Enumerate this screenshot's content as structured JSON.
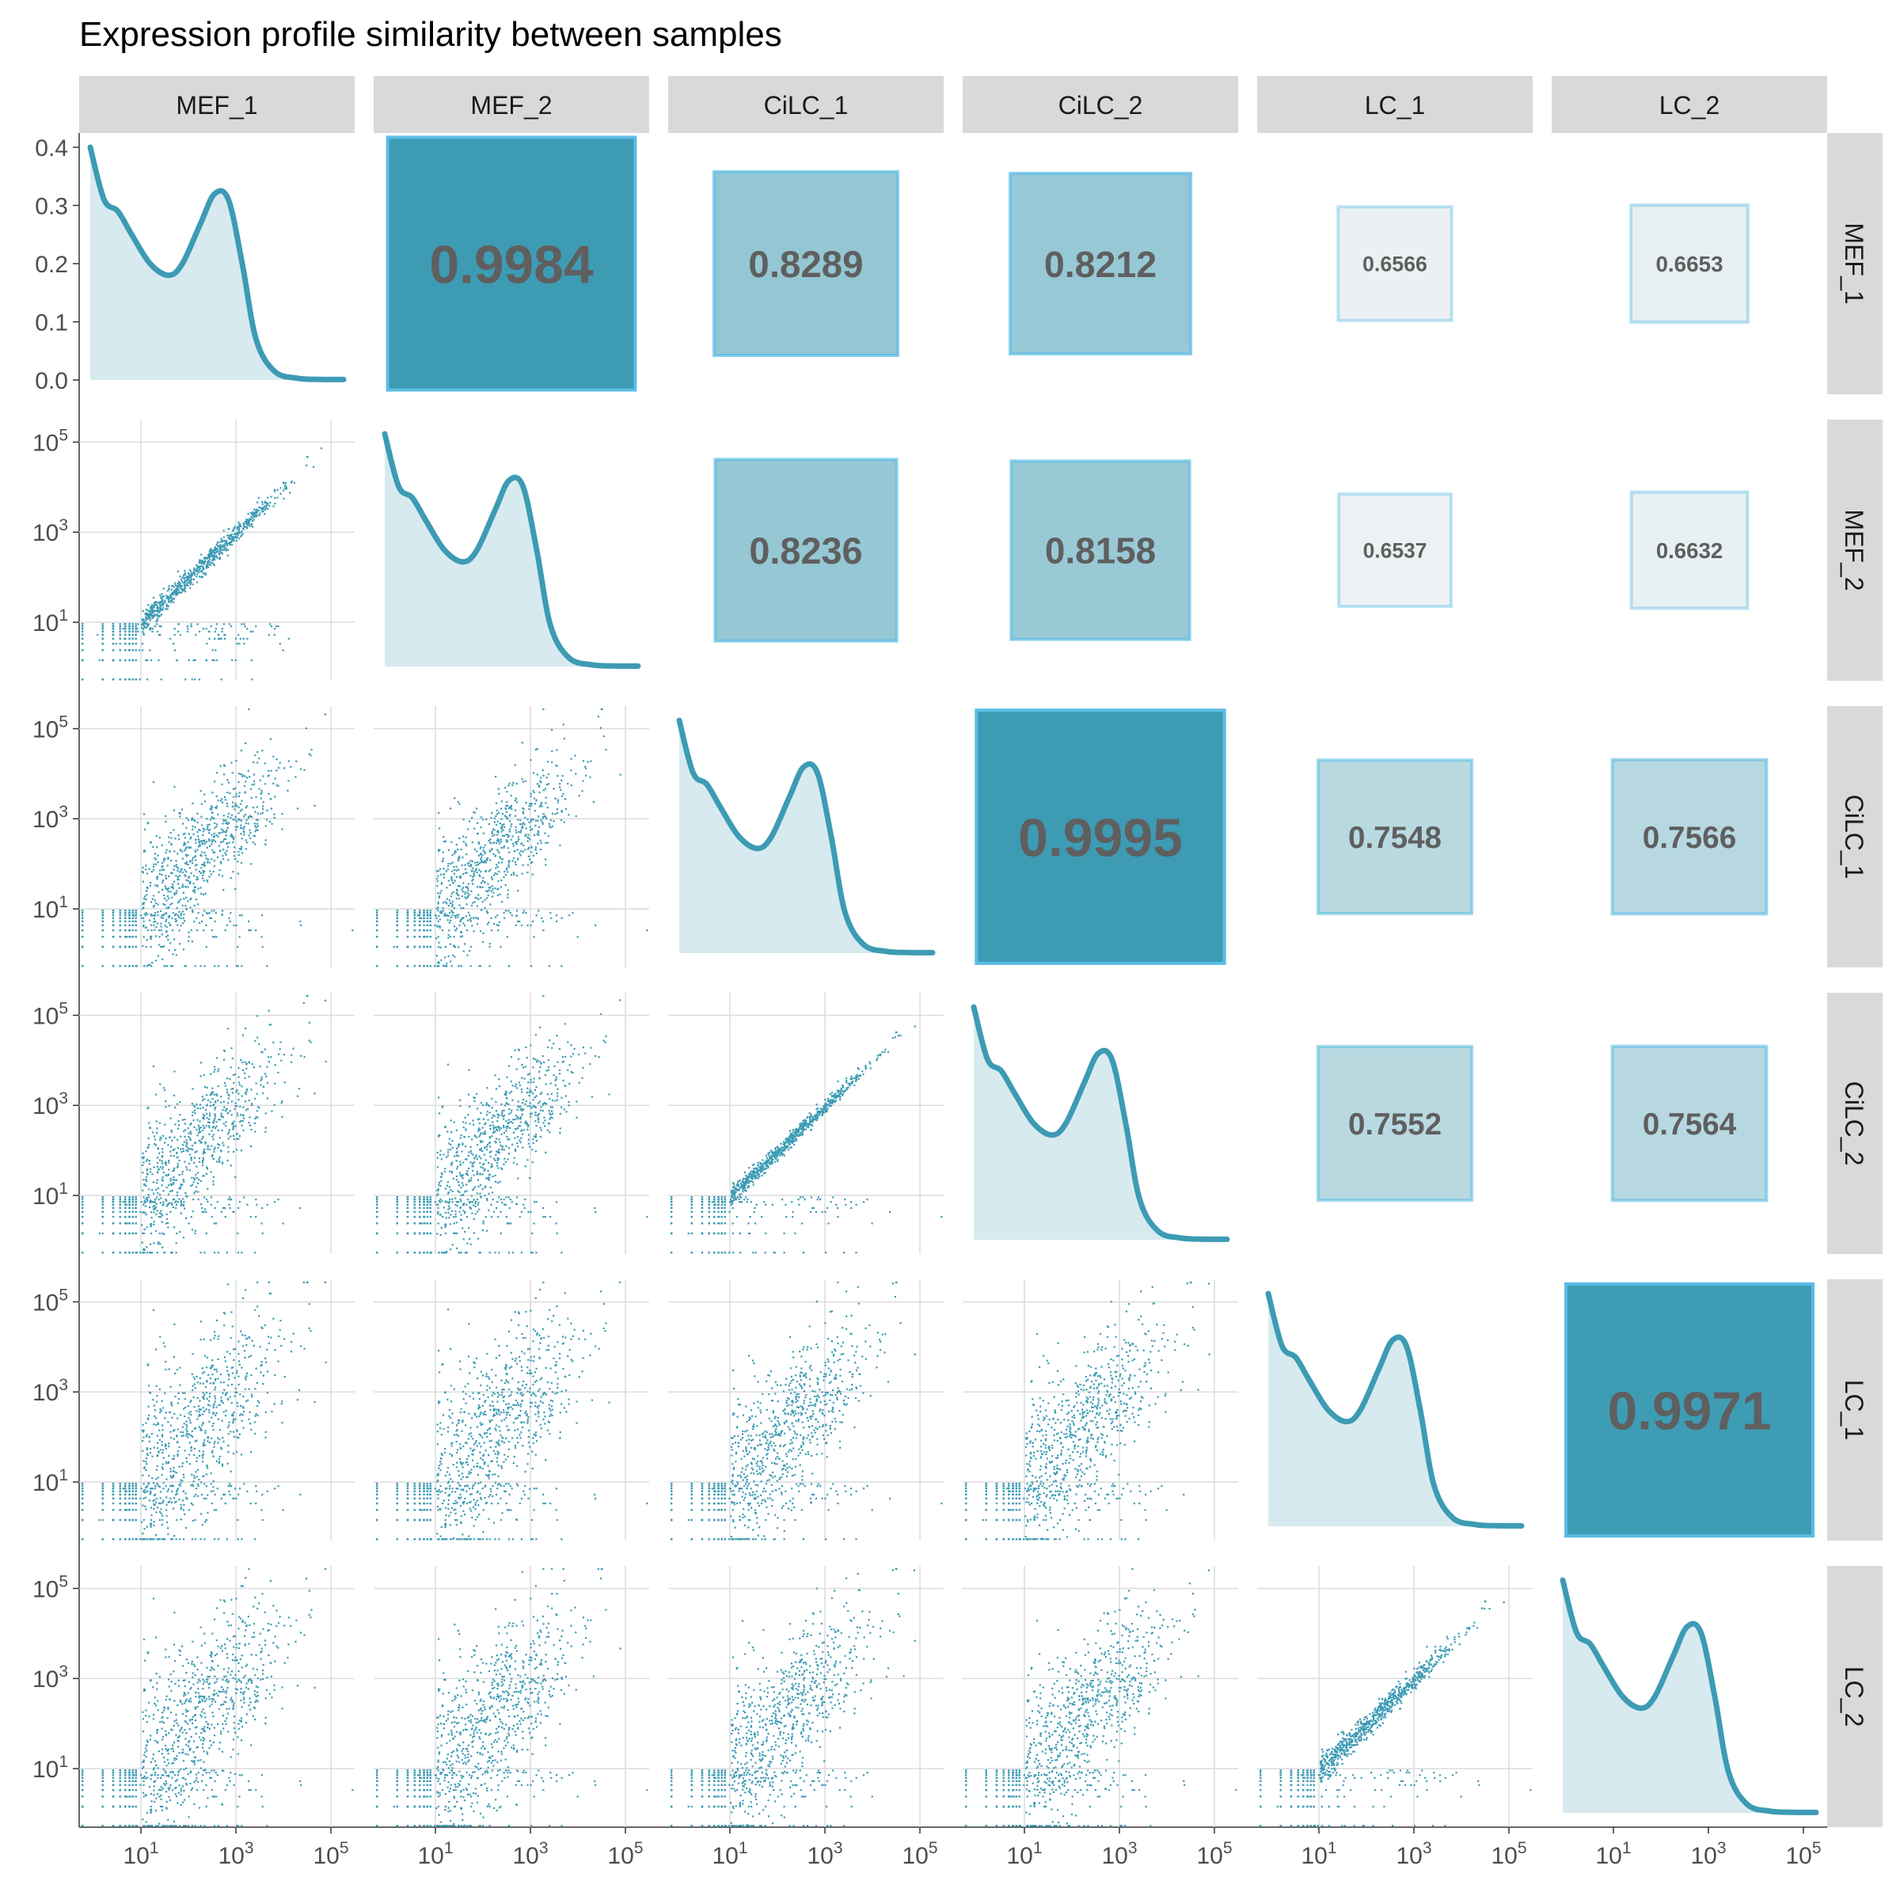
{
  "chart_data": {
    "type": "scatter-matrix",
    "title": "Expression profile similarity between samples",
    "samples": [
      "MEF_1",
      "MEF_2",
      "CiLC_1",
      "CiLC_2",
      "LC_1",
      "LC_2"
    ],
    "axis_scale": "log10",
    "axis_tick_labels": [
      {
        "base": "10",
        "exp": "1"
      },
      {
        "base": "10",
        "exp": "3"
      },
      {
        "base": "10",
        "exp": "5"
      }
    ],
    "density_axis": {
      "range": [
        0,
        0.4
      ],
      "ticks": [
        "0.0",
        "0.1",
        "0.2",
        "0.3",
        "0.4"
      ]
    },
    "density_curve": {
      "x": [
        0,
        0.3,
        0.6,
        0.9,
        1.3,
        1.7,
        2.0,
        2.4,
        2.7,
        3.0,
        3.3,
        3.6,
        4.0,
        4.5,
        5.0,
        5.5
      ],
      "y": [
        0.4,
        0.31,
        0.29,
        0.25,
        0.2,
        0.18,
        0.2,
        0.27,
        0.32,
        0.31,
        0.2,
        0.07,
        0.015,
        0.003,
        0.001,
        0.0008
      ]
    },
    "correlations": [
      {
        "row": "MEF_1",
        "col": "MEF_2",
        "value": "0.9984",
        "r": 0.9984
      },
      {
        "row": "MEF_1",
        "col": "CiLC_1",
        "value": "0.8289",
        "r": 0.8289
      },
      {
        "row": "MEF_1",
        "col": "CiLC_2",
        "value": "0.8212",
        "r": 0.8212
      },
      {
        "row": "MEF_1",
        "col": "LC_1",
        "value": "0.6566",
        "r": 0.6566
      },
      {
        "row": "MEF_1",
        "col": "LC_2",
        "value": "0.6653",
        "r": 0.6653
      },
      {
        "row": "MEF_2",
        "col": "CiLC_1",
        "value": "0.8236",
        "r": 0.8236
      },
      {
        "row": "MEF_2",
        "col": "CiLC_2",
        "value": "0.8158",
        "r": 0.8158
      },
      {
        "row": "MEF_2",
        "col": "LC_1",
        "value": "0.6537",
        "r": 0.6537
      },
      {
        "row": "MEF_2",
        "col": "LC_2",
        "value": "0.6632",
        "r": 0.6632
      },
      {
        "row": "CiLC_1",
        "col": "CiLC_2",
        "value": "0.9995",
        "r": 0.9995
      },
      {
        "row": "CiLC_1",
        "col": "LC_1",
        "value": "0.7548",
        "r": 0.7548
      },
      {
        "row": "CiLC_1",
        "col": "LC_2",
        "value": "0.7566",
        "r": 0.7566
      },
      {
        "row": "CiLC_2",
        "col": "LC_1",
        "value": "0.7552",
        "r": 0.7552
      },
      {
        "row": "CiLC_2",
        "col": "LC_2",
        "value": "0.7564",
        "r": 0.7564
      },
      {
        "row": "LC_1",
        "col": "LC_2",
        "value": "0.9971",
        "r": 0.9971
      }
    ],
    "colors": {
      "point": "#3d9bb4",
      "density_line": "#3d9bb4",
      "density_fill": "#d7eaf0",
      "box_high": "#3d9bb4",
      "box_low": "#eef3f4",
      "box_border": "#5bbde6",
      "corr_text": "#5f5f5f",
      "strip_bg": "#d9d9d9",
      "grid": "#dcdcdc"
    },
    "grid": true
  }
}
